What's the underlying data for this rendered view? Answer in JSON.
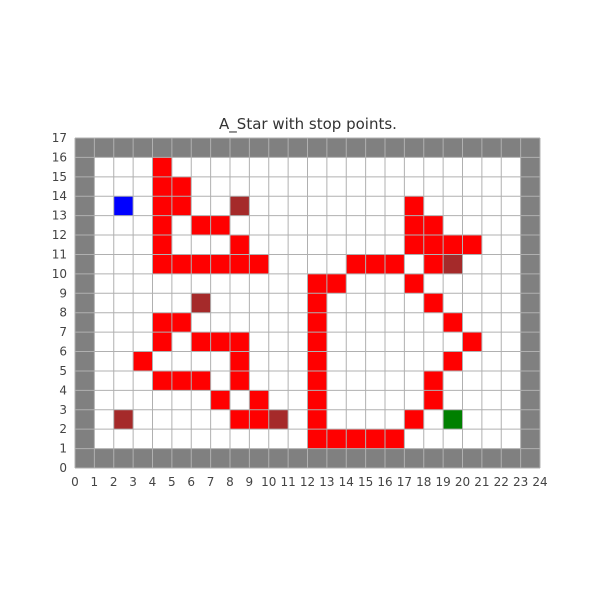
{
  "chart_data": {
    "type": "heatmap",
    "title": "A_Star with stop points.",
    "xlabel": "",
    "ylabel": "",
    "xlim": [
      0,
      24
    ],
    "ylim": [
      0,
      17
    ],
    "x_ticks": [
      "0",
      "1",
      "2",
      "3",
      "4",
      "5",
      "6",
      "7",
      "8",
      "9",
      "10",
      "11",
      "12",
      "13",
      "14",
      "15",
      "16",
      "17",
      "18",
      "19",
      "20",
      "21",
      "22",
      "23",
      "24"
    ],
    "y_ticks": [
      "0",
      "1",
      "2",
      "3",
      "4",
      "5",
      "6",
      "7",
      "8",
      "9",
      "10",
      "11",
      "12",
      "13",
      "14",
      "15",
      "16",
      "17"
    ],
    "grid": true,
    "cell_categories": [
      {
        "name": "wall",
        "color": "#808080"
      },
      {
        "name": "path",
        "color": "#ff0000"
      },
      {
        "name": "stop point",
        "color": "#a52a2a"
      },
      {
        "name": "start",
        "color": "#0000ff"
      },
      {
        "name": "goal",
        "color": "#008000"
      }
    ],
    "walls": {
      "x_min": 0,
      "x_max": 23,
      "y_min": 0,
      "y_max": 16
    },
    "start": [
      2,
      13
    ],
    "goal": [
      19,
      2
    ],
    "stop_points": [
      [
        2,
        2
      ],
      [
        10,
        2
      ],
      [
        6,
        8
      ],
      [
        8,
        13
      ],
      [
        19,
        10
      ]
    ],
    "path_cells": [
      [
        4,
        15
      ],
      [
        4,
        14
      ],
      [
        5,
        14
      ],
      [
        4,
        13
      ],
      [
        5,
        13
      ],
      [
        6,
        12
      ],
      [
        7,
        12
      ],
      [
        4,
        12
      ],
      [
        4,
        11
      ],
      [
        8,
        11
      ],
      [
        4,
        10
      ],
      [
        5,
        10
      ],
      [
        6,
        10
      ],
      [
        7,
        10
      ],
      [
        8,
        10
      ],
      [
        9,
        10
      ],
      [
        12,
        2
      ],
      [
        12,
        3
      ],
      [
        12,
        4
      ],
      [
        12,
        5
      ],
      [
        12,
        6
      ],
      [
        12,
        7
      ],
      [
        12,
        8
      ],
      [
        12,
        9
      ],
      [
        12,
        1
      ],
      [
        13,
        1
      ],
      [
        14,
        1
      ],
      [
        15,
        1
      ],
      [
        16,
        1
      ],
      [
        13,
        9
      ],
      [
        14,
        10
      ],
      [
        15,
        10
      ],
      [
        16,
        10
      ],
      [
        17,
        9
      ],
      [
        17,
        13
      ],
      [
        17,
        12
      ],
      [
        18,
        12
      ],
      [
        17,
        11
      ],
      [
        18,
        11
      ],
      [
        19,
        11
      ],
      [
        20,
        11
      ],
      [
        18,
        10
      ],
      [
        18,
        8
      ],
      [
        19,
        7
      ],
      [
        20,
        6
      ],
      [
        19,
        5
      ],
      [
        18,
        4
      ],
      [
        18,
        3
      ],
      [
        17,
        2
      ],
      [
        4,
        7
      ],
      [
        5,
        7
      ],
      [
        4,
        6
      ],
      [
        6,
        6
      ],
      [
        7,
        6
      ],
      [
        8,
        6
      ],
      [
        3,
        5
      ],
      [
        8,
        5
      ],
      [
        4,
        4
      ],
      [
        5,
        4
      ],
      [
        6,
        4
      ],
      [
        8,
        4
      ],
      [
        7,
        3
      ],
      [
        9,
        3
      ],
      [
        8,
        2
      ],
      [
        9,
        2
      ]
    ]
  }
}
